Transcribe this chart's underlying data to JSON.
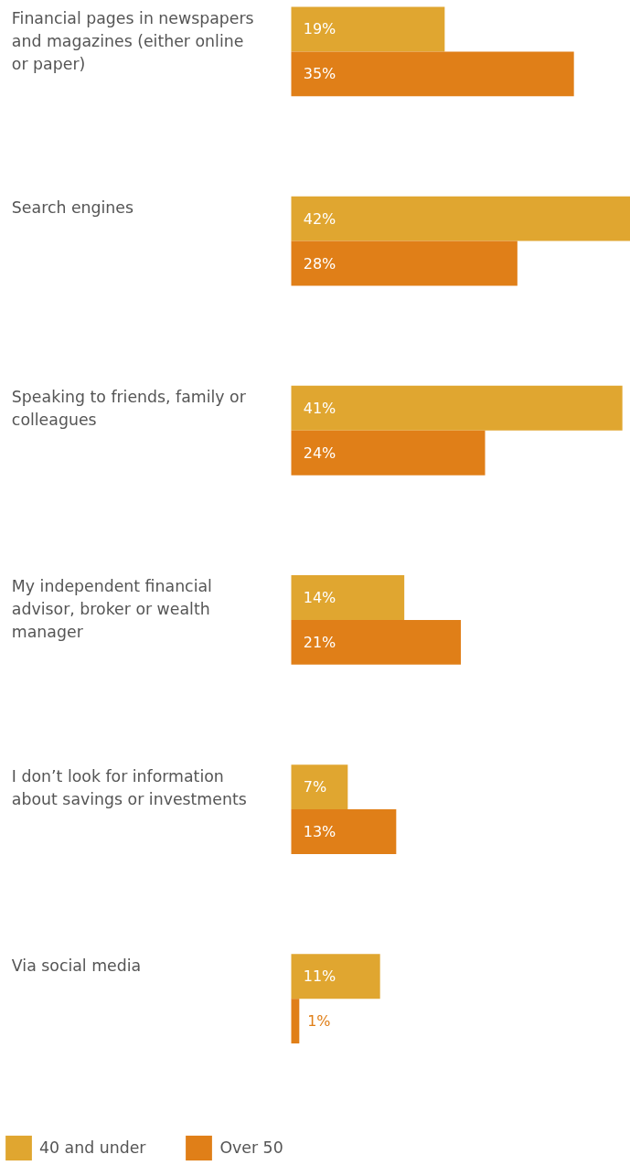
{
  "chart_data": {
    "type": "bar",
    "orientation": "horizontal",
    "legend": "bottom left",
    "categories": [
      "Financial pages in newspapers and magazines (either online or paper)",
      "Search engines",
      "Speaking to friends, family or colleagues",
      "My independent financial advisor, broker or wealth manager",
      "I don’t look for information about savings or investments",
      "Via social media"
    ],
    "series": [
      {
        "name": "40 and under",
        "color": "#e0a630",
        "values": [
          19,
          42,
          41,
          14,
          7,
          11
        ],
        "value_labels": [
          "19%",
          "42%",
          "41%",
          "14%",
          "7%",
          "11%"
        ]
      },
      {
        "name": "Over 50",
        "color": "#e07f18",
        "values": [
          35,
          28,
          24,
          21,
          13,
          1
        ],
        "value_labels": [
          "35%",
          "28%",
          "24%",
          "21%",
          "13%",
          "1%"
        ]
      }
    ]
  }
}
